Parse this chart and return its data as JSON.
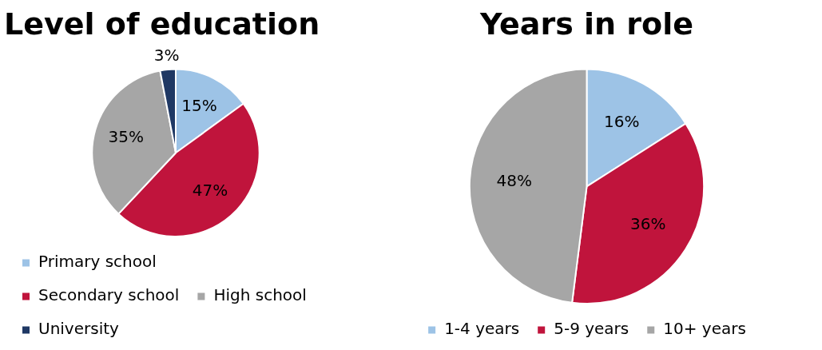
{
  "chart_data": [
    {
      "type": "pie",
      "title": "Level of education",
      "categories": [
        "Primary school",
        "Secondary school",
        "High school",
        "University"
      ],
      "values": [
        15,
        47,
        35,
        3
      ],
      "value_labels": [
        "15%",
        "47%",
        "35%",
        "3%"
      ],
      "colors": [
        "#9dc3e6",
        "#c0143c",
        "#a6a6a6",
        "#1f3864"
      ],
      "legend": "bottom"
    },
    {
      "type": "pie",
      "title": "Years in role",
      "categories": [
        "1-4 years",
        "5-9 years",
        "10+ years"
      ],
      "values": [
        16,
        36,
        48
      ],
      "value_labels": [
        "16%",
        "36%",
        "48%"
      ],
      "colors": [
        "#9dc3e6",
        "#c0143c",
        "#a6a6a6"
      ],
      "legend": "bottom"
    }
  ]
}
